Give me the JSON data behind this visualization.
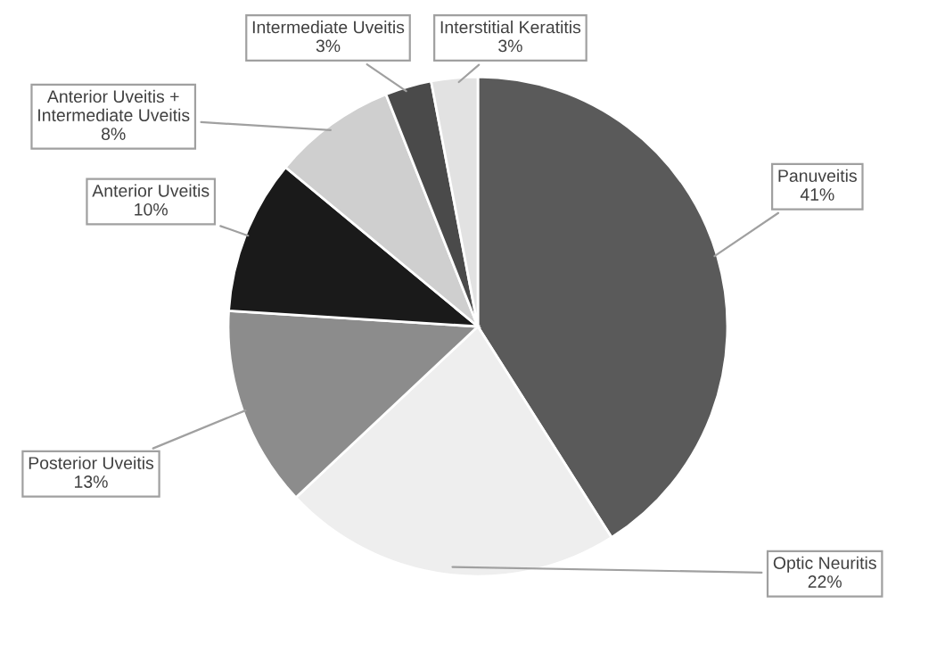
{
  "chart_data": {
    "type": "pie",
    "categories": [
      "Panuveitis",
      "Optic Neuritis",
      "Posterior Uveitis",
      "Anterior Uveitis",
      "Anterior Uveitis +\nIntermediate Uveitis",
      "Intermediate Uveitis",
      "Interstitial Keratitis"
    ],
    "values": [
      41,
      22,
      13,
      10,
      8,
      3,
      3
    ],
    "colors": [
      "#5a5a5a",
      "#eeeeee",
      "#8c8c8c",
      "#1a1a1a",
      "#cfcfcf",
      "#4a4a4a",
      "#e2e2e2"
    ],
    "value_labels": [
      "41%",
      "22%",
      "13%",
      "10%",
      "8%",
      "3%",
      "3%"
    ],
    "legend": false
  }
}
